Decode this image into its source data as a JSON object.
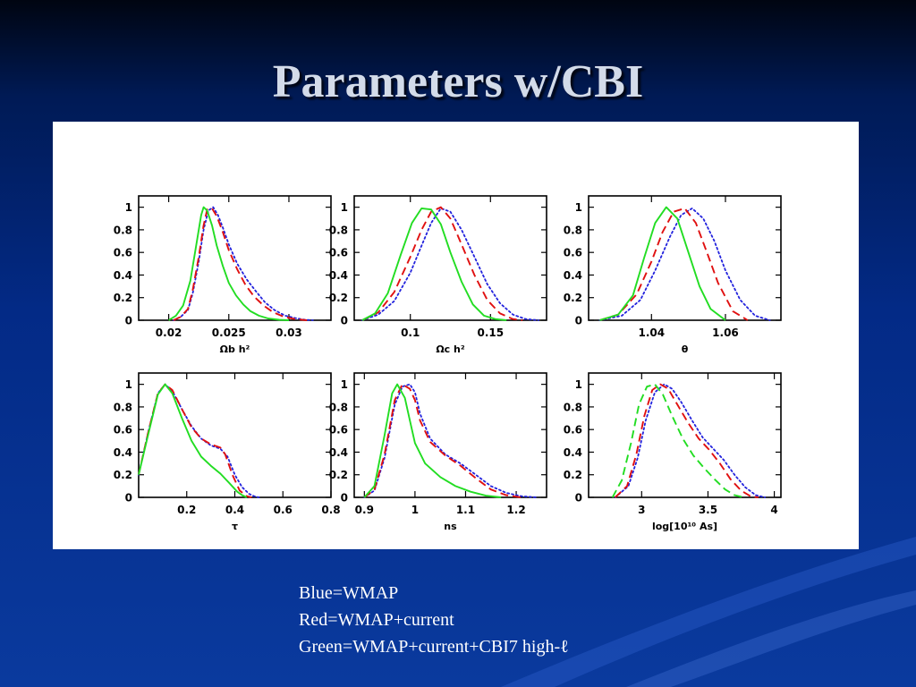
{
  "slide": {
    "title": "Parameters w/CBI",
    "legend_lines": [
      "Blue=WMAP",
      "Red=WMAP+current",
      "Green=WMAP+current+CBI7 high-ℓ"
    ]
  },
  "colors": {
    "blue": "#2222dd",
    "red": "#e01010",
    "green": "#22dd22"
  },
  "chart_data": [
    {
      "type": "line",
      "xlim": [
        0.0175,
        0.0335
      ],
      "ylim": [
        0,
        1.1
      ],
      "xticks": [
        0.02,
        0.025,
        0.03
      ],
      "xticklabels": [
        "0.02",
        "0.025",
        "0.03"
      ],
      "yticks": [
        0,
        0.2,
        0.4,
        0.6,
        0.8,
        1
      ],
      "yticklabels": [
        "0",
        "0.2",
        "0.4",
        "0.6",
        "0.8",
        "1"
      ],
      "series": [
        {
          "color": "blue",
          "style": "dotted",
          "x": [
            0.0204,
            0.021,
            0.0216,
            0.022,
            0.0225,
            0.0229,
            0.0233,
            0.0237,
            0.0241,
            0.0245,
            0.025,
            0.0257,
            0.0265,
            0.0273,
            0.028,
            0.0288,
            0.0297,
            0.0305,
            0.0313,
            0.032
          ],
          "y": [
            0,
            0.03,
            0.09,
            0.24,
            0.52,
            0.8,
            0.97,
            1.0,
            0.93,
            0.82,
            0.67,
            0.5,
            0.36,
            0.25,
            0.16,
            0.09,
            0.04,
            0.02,
            0.005,
            0
          ]
        },
        {
          "color": "red",
          "style": "dashed",
          "x": [
            0.0204,
            0.021,
            0.0216,
            0.022,
            0.0225,
            0.0229,
            0.0232,
            0.0236,
            0.024,
            0.0245,
            0.025,
            0.0257,
            0.0264,
            0.0271,
            0.0279,
            0.0287,
            0.0296,
            0.0305,
            0.0315
          ],
          "y": [
            0,
            0.03,
            0.1,
            0.27,
            0.56,
            0.84,
            0.98,
            0.99,
            0.92,
            0.78,
            0.62,
            0.45,
            0.31,
            0.21,
            0.13,
            0.07,
            0.03,
            0.01,
            0
          ]
        },
        {
          "color": "green",
          "style": "solid",
          "x": [
            0.02,
            0.0206,
            0.0212,
            0.0218,
            0.0223,
            0.0227,
            0.0229,
            0.0232,
            0.0236,
            0.024,
            0.0245,
            0.025,
            0.0256,
            0.0262,
            0.0268,
            0.0275,
            0.0283,
            0.0292,
            0.03
          ],
          "y": [
            0,
            0.04,
            0.13,
            0.35,
            0.67,
            0.93,
            1.0,
            0.97,
            0.84,
            0.66,
            0.48,
            0.33,
            0.22,
            0.14,
            0.08,
            0.04,
            0.015,
            0.004,
            0
          ]
        }
      ],
      "xlabel": "Ωb h²"
    },
    {
      "type": "line",
      "xlim": [
        0.065,
        0.185
      ],
      "ylim": [
        0,
        1.1
      ],
      "xticks": [
        0.1,
        0.15
      ],
      "xticklabels": [
        "0.1",
        "0.15"
      ],
      "yticks": [
        0,
        0.2,
        0.4,
        0.6,
        0.8,
        1
      ],
      "yticklabels": [
        "0",
        "0.2",
        "0.4",
        "0.6",
        "0.8",
        "1"
      ],
      "series": [
        {
          "color": "blue",
          "style": "dotted",
          "x": [
            0.07,
            0.08,
            0.09,
            0.1,
            0.107,
            0.113,
            0.119,
            0.125,
            0.132,
            0.14,
            0.148,
            0.156,
            0.164,
            0.172,
            0.18
          ],
          "y": [
            0,
            0.05,
            0.17,
            0.42,
            0.66,
            0.86,
            0.99,
            0.96,
            0.8,
            0.56,
            0.32,
            0.15,
            0.05,
            0.01,
            0
          ]
        },
        {
          "color": "red",
          "style": "dashed",
          "x": [
            0.07,
            0.08,
            0.09,
            0.1,
            0.107,
            0.113,
            0.119,
            0.125,
            0.132,
            0.14,
            0.148,
            0.156,
            0.164,
            0.17
          ],
          "y": [
            0,
            0.07,
            0.25,
            0.56,
            0.8,
            0.96,
            1.0,
            0.9,
            0.67,
            0.4,
            0.18,
            0.06,
            0.01,
            0
          ]
        },
        {
          "color": "green",
          "style": "solid",
          "x": [
            0.07,
            0.078,
            0.086,
            0.094,
            0.101,
            0.107,
            0.113,
            0.119,
            0.125,
            0.132,
            0.139,
            0.146,
            0.153,
            0.16
          ],
          "y": [
            0,
            0.06,
            0.24,
            0.58,
            0.86,
            0.99,
            0.98,
            0.85,
            0.6,
            0.34,
            0.14,
            0.04,
            0.01,
            0
          ]
        }
      ],
      "xlabel": "Ωc h²"
    },
    {
      "type": "line",
      "xlim": [
        1.023,
        1.075
      ],
      "ylim": [
        0,
        1.1
      ],
      "xticks": [
        1.04,
        1.06
      ],
      "xticklabels": [
        "1.04",
        "1.06"
      ],
      "yticks": [
        0,
        0.2,
        0.4,
        0.6,
        0.8,
        1
      ],
      "yticklabels": [
        "0",
        "0.2",
        "0.4",
        "0.6",
        "0.8",
        "1"
      ],
      "series": [
        {
          "color": "blue",
          "style": "dotted",
          "x": [
            1.026,
            1.032,
            1.037,
            1.041,
            1.045,
            1.048,
            1.051,
            1.054,
            1.057,
            1.06,
            1.064,
            1.068,
            1.072
          ],
          "y": [
            0,
            0.04,
            0.18,
            0.44,
            0.74,
            0.93,
            0.99,
            0.9,
            0.7,
            0.44,
            0.18,
            0.04,
            0
          ]
        },
        {
          "color": "red",
          "style": "dashed",
          "x": [
            1.026,
            1.031,
            1.036,
            1.04,
            1.043,
            1.046,
            1.049,
            1.052,
            1.055,
            1.058,
            1.062,
            1.066
          ],
          "y": [
            0,
            0.05,
            0.23,
            0.52,
            0.78,
            0.96,
            0.99,
            0.86,
            0.6,
            0.33,
            0.08,
            0
          ]
        },
        {
          "color": "green",
          "style": "solid",
          "x": [
            1.026,
            1.031,
            1.035,
            1.038,
            1.041,
            1.044,
            1.047,
            1.05,
            1.053,
            1.056,
            1.06
          ],
          "y": [
            0,
            0.05,
            0.22,
            0.55,
            0.86,
            1.0,
            0.9,
            0.6,
            0.3,
            0.1,
            0
          ]
        }
      ],
      "xlabel": "θ"
    },
    {
      "type": "line",
      "xlim": [
        0.0,
        0.8
      ],
      "ylim": [
        0,
        1.1
      ],
      "xticks": [
        0.2,
        0.4,
        0.6,
        0.8
      ],
      "xticklabels": [
        "0.2",
        "0.4",
        "0.6",
        "0.8"
      ],
      "yticks": [
        0,
        0.2,
        0.4,
        0.6,
        0.8,
        1
      ],
      "yticklabels": [
        "0",
        "0.2",
        "0.4",
        "0.6",
        "0.8",
        "1"
      ],
      "series": [
        {
          "color": "blue",
          "style": "dotted",
          "x": [
            0.0,
            0.04,
            0.08,
            0.11,
            0.14,
            0.18,
            0.22,
            0.26,
            0.3,
            0.34,
            0.37,
            0.4,
            0.43,
            0.46,
            0.48,
            0.5
          ],
          "y": [
            0.2,
            0.58,
            0.92,
            1.0,
            0.94,
            0.78,
            0.63,
            0.52,
            0.46,
            0.43,
            0.36,
            0.2,
            0.09,
            0.03,
            0.01,
            0
          ]
        },
        {
          "color": "red",
          "style": "dashed",
          "x": [
            0.0,
            0.04,
            0.08,
            0.11,
            0.14,
            0.18,
            0.22,
            0.26,
            0.3,
            0.34,
            0.36,
            0.39,
            0.42,
            0.45,
            0.47
          ],
          "y": [
            0.2,
            0.58,
            0.92,
            1.0,
            0.95,
            0.78,
            0.62,
            0.52,
            0.47,
            0.44,
            0.38,
            0.2,
            0.06,
            0.01,
            0
          ]
        },
        {
          "color": "green",
          "style": "solid",
          "x": [
            0.0,
            0.04,
            0.08,
            0.11,
            0.14,
            0.18,
            0.22,
            0.26,
            0.3,
            0.34,
            0.38,
            0.41,
            0.43,
            0.45
          ],
          "y": [
            0.2,
            0.56,
            0.91,
            1.0,
            0.92,
            0.7,
            0.5,
            0.36,
            0.28,
            0.21,
            0.12,
            0.05,
            0.02,
            0
          ]
        }
      ],
      "xlabel": "τ"
    },
    {
      "type": "line",
      "xlim": [
        0.88,
        1.26
      ],
      "ylim": [
        0,
        1.1
      ],
      "xticks": [
        0.9,
        1,
        1.1,
        1.2
      ],
      "xticklabels": [
        "0.9",
        "1",
        "1.1",
        "1.2"
      ],
      "yticks": [
        0,
        0.2,
        0.4,
        0.6,
        0.8,
        1
      ],
      "yticklabels": [
        "0",
        "0.2",
        "0.4",
        "0.6",
        "0.8",
        "1"
      ],
      "series": [
        {
          "color": "blue",
          "style": "dotted",
          "x": [
            0.9,
            0.92,
            0.94,
            0.96,
            0.975,
            0.99,
            1.0,
            1.01,
            1.03,
            1.06,
            1.09,
            1.12,
            1.15,
            1.18,
            1.21,
            1.24
          ],
          "y": [
            0,
            0.06,
            0.35,
            0.82,
            0.98,
            1.0,
            0.93,
            0.74,
            0.52,
            0.38,
            0.3,
            0.2,
            0.1,
            0.04,
            0.01,
            0
          ]
        },
        {
          "color": "red",
          "style": "dashed",
          "x": [
            0.9,
            0.92,
            0.94,
            0.96,
            0.975,
            0.99,
            1.0,
            1.01,
            1.03,
            1.06,
            1.09,
            1.12,
            1.15,
            1.18,
            1.21
          ],
          "y": [
            0,
            0.07,
            0.38,
            0.86,
            1.0,
            0.96,
            0.86,
            0.68,
            0.49,
            0.37,
            0.28,
            0.17,
            0.07,
            0.02,
            0
          ]
        },
        {
          "color": "green",
          "style": "solid",
          "x": [
            0.9,
            0.92,
            0.94,
            0.955,
            0.965,
            0.98,
            0.99,
            1.0,
            1.02,
            1.05,
            1.08,
            1.11,
            1.14,
            1.17
          ],
          "y": [
            0,
            0.1,
            0.55,
            0.92,
            1.0,
            0.88,
            0.68,
            0.48,
            0.3,
            0.18,
            0.1,
            0.05,
            0.015,
            0
          ]
        }
      ],
      "xlabel": "ns"
    },
    {
      "type": "line",
      "xlim": [
        2.6,
        4.05
      ],
      "ylim": [
        0,
        1.1
      ],
      "xticks": [
        3,
        3.5,
        4
      ],
      "xticklabels": [
        "3",
        "3.5",
        "4"
      ],
      "yticks": [
        0,
        0.2,
        0.4,
        0.6,
        0.8,
        1
      ],
      "yticklabels": [
        "0",
        "0.2",
        "0.4",
        "0.6",
        "0.8",
        "1"
      ],
      "series": [
        {
          "color": "blue",
          "style": "dotted",
          "x": [
            2.8,
            2.9,
            2.97,
            3.03,
            3.1,
            3.17,
            3.23,
            3.3,
            3.38,
            3.46,
            3.54,
            3.62,
            3.7,
            3.78,
            3.86,
            3.93
          ],
          "y": [
            0,
            0.1,
            0.35,
            0.68,
            0.93,
            1.0,
            0.96,
            0.84,
            0.68,
            0.53,
            0.43,
            0.33,
            0.2,
            0.09,
            0.02,
            0
          ]
        },
        {
          "color": "red",
          "style": "dashed",
          "x": [
            2.8,
            2.89,
            2.96,
            3.02,
            3.08,
            3.14,
            3.2,
            3.27,
            3.35,
            3.43,
            3.51,
            3.59,
            3.67,
            3.75,
            3.82,
            3.88
          ],
          "y": [
            0,
            0.1,
            0.38,
            0.72,
            0.95,
            1.0,
            0.96,
            0.82,
            0.66,
            0.52,
            0.42,
            0.3,
            0.16,
            0.06,
            0.01,
            0
          ]
        },
        {
          "color": "green",
          "style": "dashed",
          "x": [
            2.78,
            2.85,
            2.92,
            2.98,
            3.04,
            3.1,
            3.16,
            3.23,
            3.31,
            3.39,
            3.47,
            3.55,
            3.63,
            3.7,
            3.77
          ],
          "y": [
            0,
            0.15,
            0.48,
            0.82,
            0.98,
            1.0,
            0.91,
            0.72,
            0.52,
            0.37,
            0.26,
            0.16,
            0.07,
            0.02,
            0
          ]
        }
      ],
      "xlabel": "log[10¹⁰ As]"
    }
  ]
}
